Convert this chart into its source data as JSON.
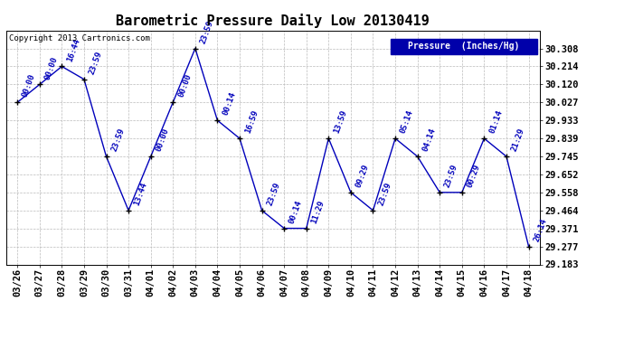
{
  "title": "Barometric Pressure Daily Low 20130419",
  "ylabel": "Pressure  (Inches/Hg)",
  "copyright": "Copyright 2013 Cartronics.com",
  "line_color": "#0000BB",
  "marker_color": "#000000",
  "background_color": "#ffffff",
  "grid_color": "#bbbbbb",
  "legend_bg": "#0000AA",
  "legend_text_color": "#ffffff",
  "ylim_min": 29.183,
  "ylim_max": 30.401,
  "yticks": [
    29.183,
    29.277,
    29.371,
    29.464,
    29.558,
    29.652,
    29.745,
    29.839,
    29.933,
    30.027,
    30.12,
    30.214,
    30.308
  ],
  "dates": [
    "03/26",
    "03/27",
    "03/28",
    "03/29",
    "03/30",
    "03/31",
    "04/01",
    "04/02",
    "04/03",
    "04/04",
    "04/05",
    "04/06",
    "04/07",
    "04/08",
    "04/09",
    "04/10",
    "04/11",
    "04/12",
    "04/13",
    "04/14",
    "04/15",
    "04/16",
    "04/17",
    "04/18"
  ],
  "values": [
    30.027,
    30.12,
    30.214,
    30.147,
    29.745,
    29.464,
    29.745,
    30.027,
    30.308,
    29.933,
    29.839,
    29.464,
    29.371,
    29.371,
    29.839,
    29.558,
    29.464,
    29.839,
    29.745,
    29.558,
    29.558,
    29.839,
    29.745,
    29.277
  ],
  "time_labels": [
    "00:00",
    "00:00",
    "16:44",
    "23:59",
    "23:59",
    "13:44",
    "00:00",
    "00:00",
    "23:59",
    "00:14",
    "16:59",
    "23:59",
    "00:14",
    "11:29",
    "13:59",
    "09:29",
    "23:59",
    "05:14",
    "04:14",
    "23:59",
    "00:29",
    "01:14",
    "21:29",
    "26:14"
  ],
  "title_fontsize": 11,
  "tick_fontsize": 7.5,
  "annot_fontsize": 6.5
}
